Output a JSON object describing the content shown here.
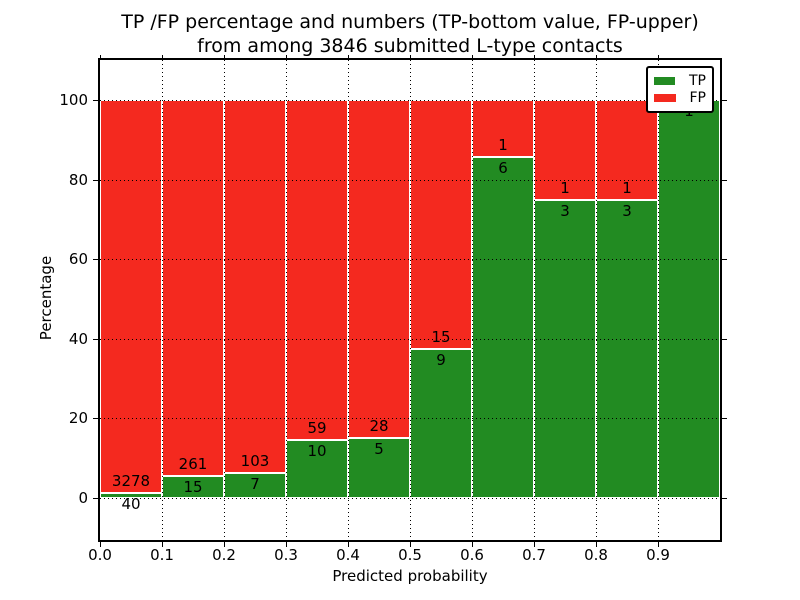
{
  "title": {
    "line1": "TP /FP percentage and numbers (TP-bottom value, FP-upper)",
    "line2": "from among 3846 submitted L-type contacts"
  },
  "axes": {
    "x_label": "Predicted probability",
    "y_label": "Percentage",
    "x_tick_labels": [
      "0.0",
      "0.1",
      "0.2",
      "0.3",
      "0.4",
      "0.5",
      "0.6",
      "0.7",
      "0.8",
      "0.9"
    ],
    "y_tick_labels": [
      "0",
      "20",
      "40",
      "60",
      "80",
      "100"
    ],
    "y_tick_values": [
      0,
      20,
      40,
      60,
      80,
      100
    ]
  },
  "legend": {
    "items": [
      {
        "label": "TP",
        "color": "#228B22",
        "swatch": "green-swatch-icon"
      },
      {
        "label": "FP",
        "color": "#F4291F",
        "swatch": "red-swatch-icon"
      }
    ]
  },
  "chart_data": {
    "type": "bar",
    "stacked": true,
    "title": "TP /FP percentage and numbers (TP-bottom value, FP-upper) from among 3846 submitted L-type contacts",
    "xlabel": "Predicted probability",
    "ylabel": "Percentage",
    "xlim": [
      0.0,
      1.0
    ],
    "ylim": [
      -10.6,
      110.1
    ],
    "grid": true,
    "legend_position": "upper right",
    "total_contacts": 3846,
    "bins": [
      "0.0-0.1",
      "0.1-0.2",
      "0.2-0.3",
      "0.3-0.4",
      "0.4-0.5",
      "0.5-0.6",
      "0.6-0.7",
      "0.7-0.8",
      "0.8-0.9",
      "0.9-1.0"
    ],
    "series": [
      {
        "name": "TP",
        "color": "#228B22",
        "counts": [
          40,
          15,
          7,
          10,
          5,
          9,
          6,
          3,
          3,
          1
        ],
        "percent": [
          1.21,
          5.43,
          6.36,
          14.49,
          15.15,
          37.5,
          85.71,
          75,
          75,
          100
        ]
      },
      {
        "name": "FP",
        "color": "#F4291F",
        "counts": [
          3278,
          261,
          103,
          59,
          28,
          15,
          1,
          1,
          1,
          0
        ],
        "percent": [
          98.79,
          94.57,
          93.64,
          85.51,
          84.85,
          62.5,
          14.29,
          25,
          25,
          0
        ]
      }
    ],
    "bar_labels": {
      "tp": [
        "40",
        "15",
        "7",
        "10",
        "5",
        "9",
        "6",
        "3",
        "3",
        "1"
      ],
      "fp": [
        "3278",
        "261",
        "103",
        "59",
        "28",
        "15",
        "1",
        "1",
        "1",
        ""
      ]
    }
  }
}
